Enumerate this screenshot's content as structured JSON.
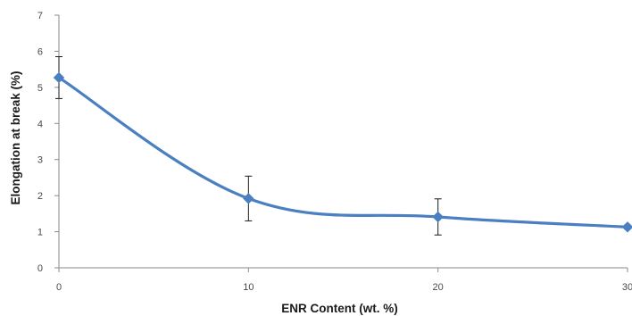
{
  "chart_data": {
    "type": "line",
    "title": "",
    "xlabel": "ENR Content (wt. %)",
    "ylabel": "Elongation at break (%)",
    "xlim": [
      0,
      30
    ],
    "ylim": [
      0,
      7
    ],
    "x_ticks": [
      "0",
      "10",
      "20",
      "30"
    ],
    "y_ticks": [
      "0",
      "1",
      "2",
      "3",
      "4",
      "5",
      "6",
      "7"
    ],
    "grid": false,
    "legend": "none",
    "smoothed": true,
    "series": [
      {
        "color": "#4a7fc1",
        "marker": "diamond",
        "x": [
          0,
          10,
          20,
          30
        ],
        "y": [
          5.27,
          1.92,
          1.41,
          1.13
        ],
        "error": [
          0.58,
          0.62,
          0.5,
          0.05
        ]
      }
    ]
  }
}
